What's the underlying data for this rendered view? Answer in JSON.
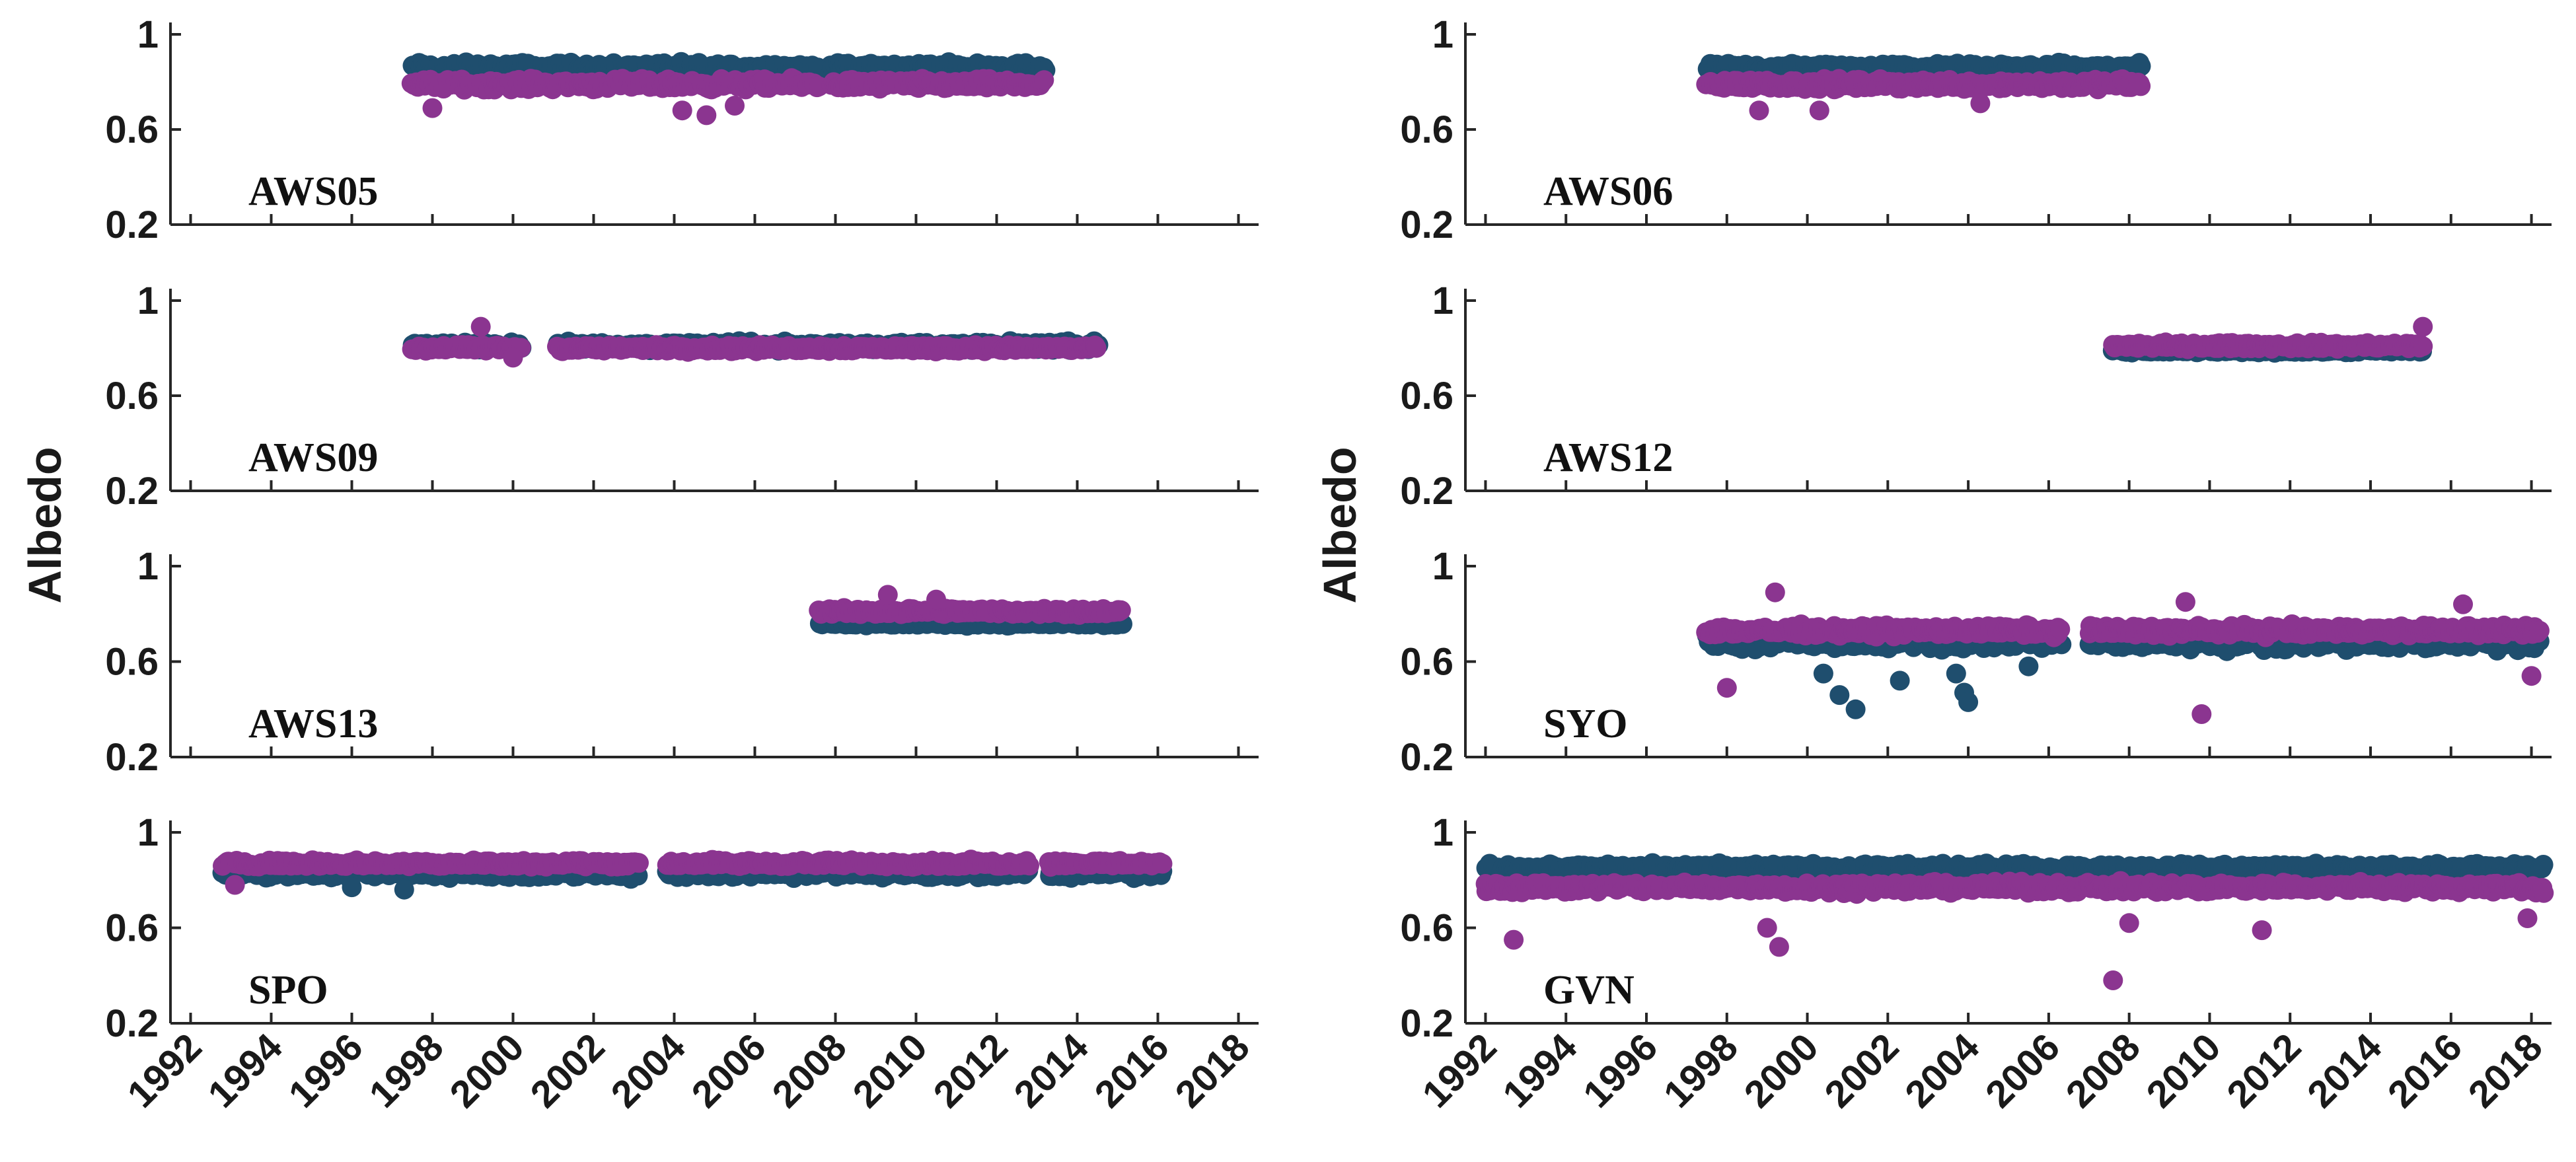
{
  "colors": {
    "series_a": "#1f4e6e",
    "series_b": "#8b3590",
    "axis": "#262626"
  },
  "chart_data": [
    {
      "type": "scatter",
      "station": "AWS05",
      "ylabel": "Albedo",
      "ylim": [
        0.2,
        1
      ],
      "yticks": [
        "0.2",
        "0.6",
        "1"
      ],
      "xlim": [
        1991.5,
        2018.5
      ],
      "xticks": [
        "1992",
        "1994",
        "1996",
        "1998",
        "2000",
        "2002",
        "2004",
        "2006",
        "2008",
        "2010",
        "2012",
        "2014",
        "2016",
        "2018"
      ],
      "series": [
        {
          "name": "series_a",
          "mean": 0.86,
          "spread": 0.05,
          "ranges": [
            [
              1997.5,
              2007.6
            ],
            [
              2007.9,
              2013.2
            ]
          ],
          "outliers": []
        },
        {
          "name": "series_b",
          "mean": 0.79,
          "spread": 0.05,
          "ranges": [
            [
              1997.5,
              2007.6
            ],
            [
              2007.9,
              2013.2
            ]
          ],
          "outliers": [
            [
              1998.0,
              0.69
            ],
            [
              2004.2,
              0.68
            ],
            [
              2004.8,
              0.66
            ],
            [
              2005.5,
              0.7
            ]
          ]
        }
      ]
    },
    {
      "type": "scatter",
      "station": "AWS06",
      "ylabel": "Albedo",
      "ylim": [
        0.2,
        1
      ],
      "yticks": [
        "0.2",
        "0.6",
        "1"
      ],
      "xlim": [
        1991.5,
        2018.5
      ],
      "xticks": [
        "1992",
        "1994",
        "1996",
        "1998",
        "2000",
        "2002",
        "2004",
        "2006",
        "2008",
        "2010",
        "2012",
        "2014",
        "2016",
        "2018"
      ],
      "series": [
        {
          "name": "series_a",
          "mean": 0.86,
          "spread": 0.04,
          "ranges": [
            [
              1997.5,
              2008.3
            ]
          ],
          "outliers": []
        },
        {
          "name": "series_b",
          "mean": 0.79,
          "spread": 0.05,
          "ranges": [
            [
              1997.5,
              2008.3
            ]
          ],
          "outliers": [
            [
              1998.8,
              0.68
            ],
            [
              2000.3,
              0.68
            ],
            [
              2004.3,
              0.71
            ]
          ]
        }
      ]
    },
    {
      "type": "scatter",
      "station": "AWS09",
      "ylabel": "Albedo",
      "ylim": [
        0.2,
        1
      ],
      "yticks": [
        "0.2",
        "0.6",
        "1"
      ],
      "xlim": [
        1991.5,
        2018.5
      ],
      "xticks": [
        "1992",
        "1994",
        "1996",
        "1998",
        "2000",
        "2002",
        "2004",
        "2006",
        "2008",
        "2010",
        "2012",
        "2014",
        "2016",
        "2018"
      ],
      "series": [
        {
          "name": "series_a",
          "mean": 0.81,
          "spread": 0.04,
          "ranges": [
            [
              1997.5,
              2000.2
            ],
            [
              2001.1,
              2014.5
            ]
          ],
          "outliers": []
        },
        {
          "name": "series_b",
          "mean": 0.8,
          "spread": 0.03,
          "ranges": [
            [
              1997.5,
              2000.2
            ],
            [
              2001.1,
              2014.5
            ]
          ],
          "outliers": [
            [
              1999.2,
              0.89
            ],
            [
              2000.0,
              0.76
            ]
          ]
        }
      ]
    },
    {
      "type": "scatter",
      "station": "AWS12",
      "ylabel": "Albedo",
      "ylim": [
        0.2,
        1
      ],
      "yticks": [
        "0.2",
        "0.6",
        "1"
      ],
      "xlim": [
        1991.5,
        2018.5
      ],
      "xticks": [
        "1992",
        "1994",
        "1996",
        "1998",
        "2000",
        "2002",
        "2004",
        "2006",
        "2008",
        "2010",
        "2012",
        "2014",
        "2016",
        "2018"
      ],
      "series": [
        {
          "name": "series_a",
          "mean": 0.79,
          "spread": 0.02,
          "ranges": [
            [
              2007.6,
              2015.3
            ]
          ],
          "outliers": []
        },
        {
          "name": "series_b",
          "mean": 0.81,
          "spread": 0.03,
          "ranges": [
            [
              2007.6,
              2015.3
            ]
          ],
          "outliers": [
            [
              2015.3,
              0.89
            ]
          ]
        }
      ]
    },
    {
      "type": "scatter",
      "station": "AWS13",
      "ylabel": "Albedo",
      "ylim": [
        0.2,
        1
      ],
      "yticks": [
        "0.2",
        "0.6",
        "1"
      ],
      "xlim": [
        1991.5,
        2018.5
      ],
      "xticks": [
        "1992",
        "1994",
        "1996",
        "1998",
        "2000",
        "2002",
        "2004",
        "2006",
        "2008",
        "2010",
        "2012",
        "2014",
        "2016",
        "2018"
      ],
      "series": [
        {
          "name": "series_a",
          "mean": 0.76,
          "spread": 0.02,
          "ranges": [
            [
              2007.6,
              2015.1
            ]
          ],
          "outliers": []
        },
        {
          "name": "series_b",
          "mean": 0.81,
          "spread": 0.03,
          "ranges": [
            [
              2007.6,
              2015.1
            ]
          ],
          "outliers": [
            [
              2009.3,
              0.88
            ],
            [
              2010.5,
              0.86
            ]
          ]
        }
      ]
    },
    {
      "type": "scatter",
      "station": "SYO",
      "ylabel": "Albedo",
      "ylim": [
        0.2,
        1
      ],
      "yticks": [
        "0.2",
        "0.6",
        "1"
      ],
      "xlim": [
        1991.5,
        2018.5
      ],
      "xticks": [
        "1992",
        "1994",
        "1996",
        "1998",
        "2000",
        "2002",
        "2004",
        "2006",
        "2008",
        "2010",
        "2012",
        "2014",
        "2016",
        "2018"
      ],
      "series": [
        {
          "name": "series_a",
          "mean": 0.68,
          "spread": 0.07,
          "ranges": [
            [
              1997.5,
              2006.3
            ],
            [
              2007.0,
              2018.2
            ]
          ],
          "outliers": [
            [
              2000.4,
              0.55
            ],
            [
              2000.8,
              0.46
            ],
            [
              2001.2,
              0.4
            ],
            [
              2002.3,
              0.52
            ],
            [
              2003.7,
              0.55
            ],
            [
              2003.9,
              0.47
            ],
            [
              2004.0,
              0.43
            ],
            [
              2005.5,
              0.58
            ]
          ]
        },
        {
          "name": "series_b",
          "mean": 0.73,
          "spread": 0.05,
          "ranges": [
            [
              1997.5,
              2006.3
            ],
            [
              2007.0,
              2018.2
            ]
          ],
          "outliers": [
            [
              1998.0,
              0.49
            ],
            [
              1999.2,
              0.89
            ],
            [
              2009.8,
              0.38
            ],
            [
              2009.4,
              0.85
            ],
            [
              2016.3,
              0.84
            ],
            [
              2018.0,
              0.54
            ]
          ]
        }
      ]
    },
    {
      "type": "scatter",
      "station": "SPO",
      "ylabel": "Albedo",
      "ylim": [
        0.2,
        1
      ],
      "yticks": [
        "0.2",
        "0.6",
        "1"
      ],
      "xlim": [
        1991.5,
        2018.5
      ],
      "xticks": [
        "1992",
        "1994",
        "1996",
        "1998",
        "2000",
        "2002",
        "2004",
        "2006",
        "2008",
        "2010",
        "2012",
        "2014",
        "2016",
        "2018"
      ],
      "series": [
        {
          "name": "series_a",
          "mean": 0.83,
          "spread": 0.05,
          "ranges": [
            [
              1992.8,
              2003.1
            ],
            [
              2003.8,
              2012.8
            ],
            [
              2013.3,
              2016.1
            ]
          ],
          "outliers": [
            [
              1996.0,
              0.77
            ],
            [
              1997.3,
              0.76
            ]
          ]
        },
        {
          "name": "series_b",
          "mean": 0.87,
          "spread": 0.03,
          "ranges": [
            [
              1992.8,
              2003.1
            ],
            [
              2003.8,
              2012.8
            ],
            [
              2013.3,
              2016.1
            ]
          ],
          "outliers": [
            [
              1993.1,
              0.78
            ]
          ]
        }
      ]
    },
    {
      "type": "scatter",
      "station": "GVN",
      "ylabel": "Albedo",
      "ylim": [
        0.2,
        1
      ],
      "yticks": [
        "0.2",
        "0.6",
        "1"
      ],
      "xlim": [
        1991.5,
        2018.5
      ],
      "xticks": [
        "1992",
        "1994",
        "1996",
        "1998",
        "2000",
        "2002",
        "2004",
        "2006",
        "2008",
        "2010",
        "2012",
        "2014",
        "2016",
        "2018"
      ],
      "series": [
        {
          "name": "series_a",
          "mean": 0.85,
          "spread": 0.04,
          "ranges": [
            [
              1992.0,
              2018.3
            ]
          ],
          "outliers": []
        },
        {
          "name": "series_b",
          "mean": 0.77,
          "spread": 0.05,
          "ranges": [
            [
              1992.0,
              2018.3
            ]
          ],
          "outliers": [
            [
              1992.7,
              0.55
            ],
            [
              1999.3,
              0.52
            ],
            [
              1999.0,
              0.6
            ],
            [
              2008.0,
              0.62
            ],
            [
              2007.6,
              0.38
            ],
            [
              2011.3,
              0.59
            ],
            [
              2017.9,
              0.64
            ]
          ]
        }
      ]
    }
  ]
}
